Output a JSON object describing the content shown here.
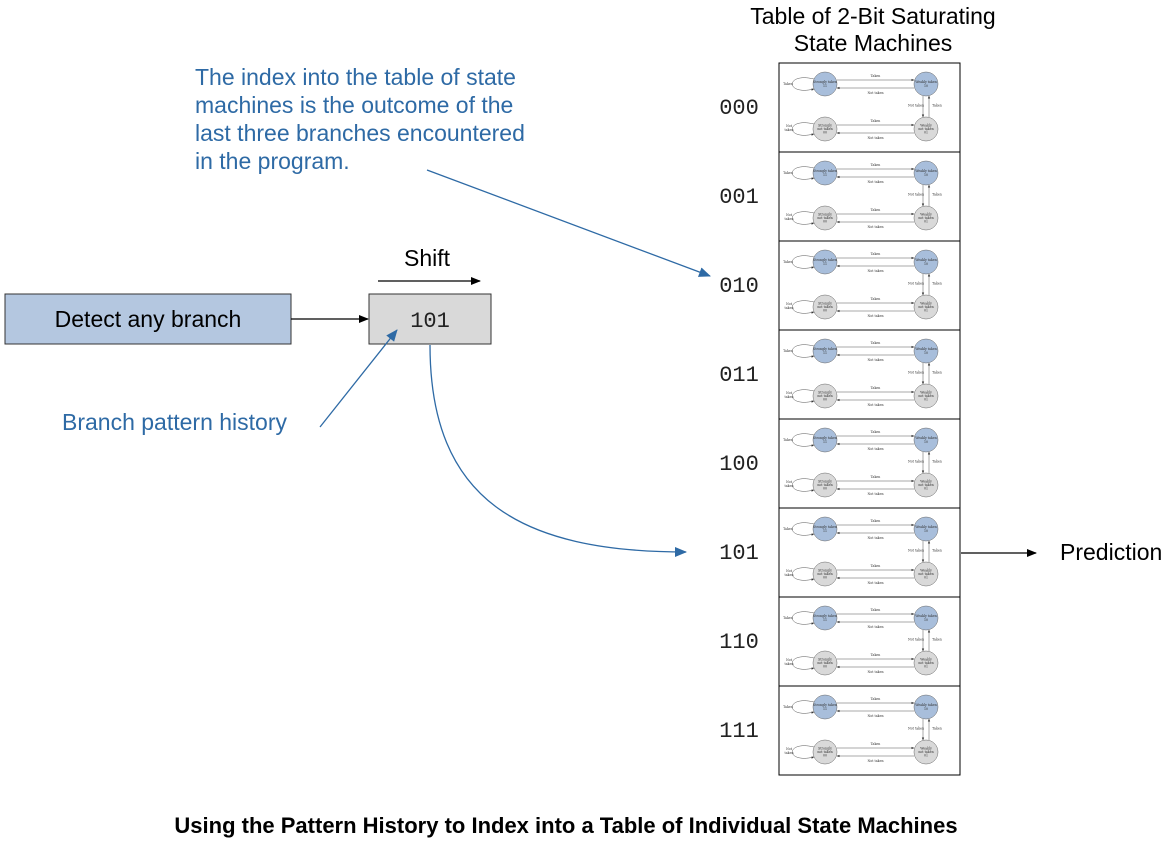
{
  "colors": {
    "blue_text": "#2e6aa5",
    "blue_arrow": "#2e6aa5",
    "detect_box_fill": "#b4c7e0",
    "history_box_fill": "#d9d9d9",
    "taken_state_fill": "#a8bedb",
    "not_taken_state_fill": "#d9d9d9"
  },
  "table_title": [
    "Table of 2-Bit Saturating",
    "State Machines"
  ],
  "index_note": [
    "The index into the table of state",
    "machines is the outcome of the",
    "last three branches encountered",
    "in the program."
  ],
  "detect_box_label": "Detect any branch",
  "shift_label": "Shift",
  "history_value": "101",
  "history_label": "Branch pattern history",
  "prediction_label": "Prediction",
  "selected_row_index": 5,
  "row_indices": [
    "000",
    "001",
    "010",
    "011",
    "100",
    "101",
    "110",
    "111"
  ],
  "state_machine": {
    "strongly_taken": [
      "Strongly taken",
      "11"
    ],
    "weakly_taken": [
      "Weakly taken",
      "10"
    ],
    "weakly_not_taken": [
      "Weakly",
      "not taken",
      "01"
    ],
    "strongly_not_taken": [
      "Strongly",
      "not taken",
      "00"
    ],
    "transition_taken": "Taken",
    "transition_not_taken": "Not taken"
  },
  "caption": "Using the Pattern History to Index into a Table of Individual State Machines"
}
